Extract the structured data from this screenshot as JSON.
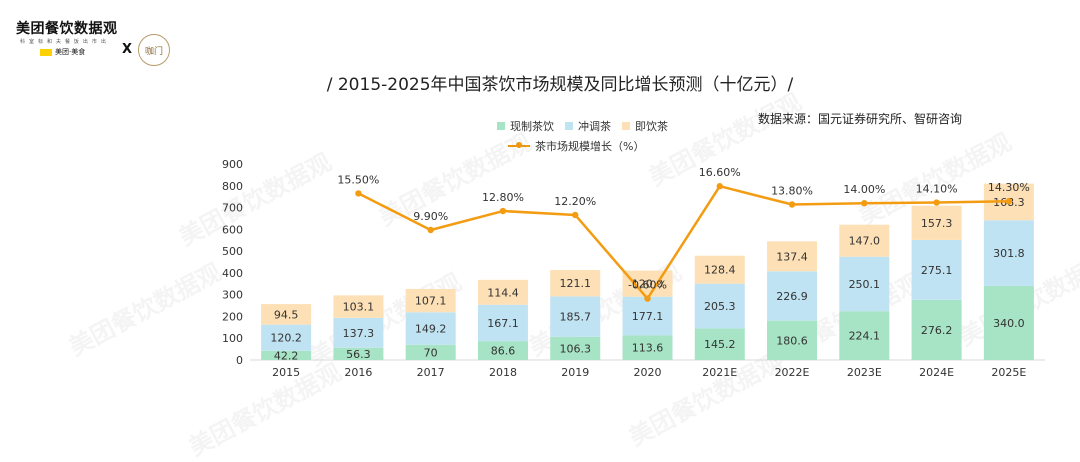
{
  "header": {
    "logo_main": "美团餐饮数据观",
    "logo_sub": "科 室 标 和 夫 餐 饭 出 市 出",
    "logo_brand": "美团·美食",
    "x_mark": "X",
    "partner_logo_text": "咖门"
  },
  "watermark_text": "美团餐饮数据观",
  "chart_data": {
    "type": "bar",
    "title": "/ 2015-2025年中国茶饮市场规模及同比增长预测（十亿元）/",
    "source": "数据来源：国元证券研究所、智研咨询",
    "categories": [
      "2015",
      "2016",
      "2017",
      "2018",
      "2019",
      "2020",
      "2021E",
      "2022E",
      "2023E",
      "2024E",
      "2025E"
    ],
    "stacked": true,
    "ylim": [
      0,
      900
    ],
    "yticks": [
      0,
      100,
      200,
      300,
      400,
      500,
      600,
      700,
      800,
      900
    ],
    "series": [
      {
        "name": "现制茶饮",
        "color": "#a7e3c5",
        "values": [
          42.2,
          56.3,
          70,
          86.6,
          106.3,
          113.6,
          145.2,
          180.6,
          224.1,
          276.2,
          340.0
        ],
        "labels": [
          "42.2",
          "56.3",
          "70",
          "86.6",
          "106.3",
          "113.6",
          "145.2",
          "180.6",
          "224.1",
          "276.2",
          "340.0"
        ]
      },
      {
        "name": "冲调茶",
        "color": "#c0e3f3",
        "values": [
          120.2,
          137.3,
          149.2,
          167.1,
          185.7,
          177.1,
          205.3,
          226.9,
          250.1,
          275.1,
          301.8
        ],
        "labels": [
          "120.2",
          "137.3",
          "149.2",
          "167.1",
          "185.7",
          "177.1",
          "205.3",
          "226.9",
          "250.1",
          "275.1",
          "301.8"
        ]
      },
      {
        "name": "即饮茶",
        "color": "#fde0b6",
        "values": [
          94.5,
          103.1,
          107.1,
          114.4,
          121.1,
          120.0,
          128.4,
          137.4,
          147.0,
          157.3,
          168.3
        ],
        "labels": [
          "94.5",
          "103.1",
          "107.1",
          "114.4",
          "121.1",
          "120.0",
          "128.4",
          "137.4",
          "147.0",
          "157.3",
          "168.3"
        ]
      }
    ],
    "line_series": {
      "name": "茶市场规模增长（%）",
      "color": "#f39c12",
      "values": [
        15.5,
        9.9,
        12.8,
        12.2,
        -0.6,
        16.6,
        13.8,
        14.0,
        14.1,
        14.3
      ],
      "labels": [
        "15.50%",
        "9.90%",
        "12.80%",
        "12.20%",
        "-0.60%",
        "16.60%",
        "13.80%",
        "14.00%",
        "14.10%",
        "14.30%"
      ],
      "start_index": 1,
      "ylim": [
        -10,
        20
      ]
    },
    "legend_position": "top-center",
    "grid": false
  }
}
